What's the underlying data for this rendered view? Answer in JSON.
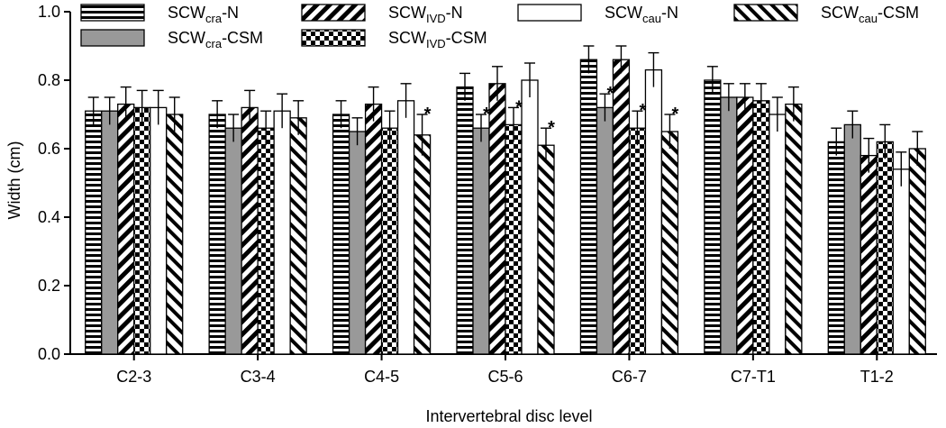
{
  "chart_data": {
    "type": "bar",
    "title": "",
    "xlabel": "Intervertebral disc level",
    "ylabel": "Width (cm)",
    "ylim": [
      0,
      1.0
    ],
    "yticks": [
      "0.0",
      "0.2",
      "0.4",
      "0.6",
      "0.8",
      "1.0"
    ],
    "grid": false,
    "legend_position": "top",
    "categories": [
      "C2-3",
      "C3-4",
      "C4-5",
      "C5-6",
      "C6-7",
      "C7-T1",
      "T1-2"
    ],
    "series": [
      {
        "name_main": "SCW",
        "name_sub": "cra",
        "name_suffix": "-N",
        "pattern": "hlines",
        "values": [
          0.71,
          0.7,
          0.7,
          0.78,
          0.86,
          0.8,
          0.62
        ],
        "errors": [
          0.04,
          0.04,
          0.04,
          0.04,
          0.04,
          0.04,
          0.04
        ]
      },
      {
        "name_main": "SCW",
        "name_sub": "cra",
        "name_suffix": "-CSM",
        "pattern": "gray",
        "values": [
          0.71,
          0.66,
          0.65,
          0.66,
          0.72,
          0.75,
          0.67
        ],
        "errors": [
          0.04,
          0.04,
          0.04,
          0.04,
          0.04,
          0.04,
          0.04
        ]
      },
      {
        "name_main": "SCW",
        "name_sub": "IVD",
        "name_suffix": "-N",
        "pattern": "backdiag",
        "values": [
          0.73,
          0.72,
          0.73,
          0.79,
          0.86,
          0.75,
          0.58
        ],
        "errors": [
          0.05,
          0.05,
          0.05,
          0.05,
          0.04,
          0.04,
          0.05
        ]
      },
      {
        "name_main": "SCW",
        "name_sub": "IVD",
        "name_suffix": "-CSM",
        "pattern": "checker",
        "values": [
          0.72,
          0.66,
          0.66,
          0.67,
          0.66,
          0.74,
          0.62
        ],
        "errors": [
          0.05,
          0.05,
          0.05,
          0.05,
          0.05,
          0.05,
          0.05
        ]
      },
      {
        "name_main": "SCW",
        "name_sub": "cau",
        "name_suffix": "-N",
        "pattern": "white",
        "values": [
          0.72,
          0.71,
          0.74,
          0.8,
          0.83,
          0.7,
          0.54
        ],
        "errors": [
          0.05,
          0.05,
          0.05,
          0.05,
          0.05,
          0.05,
          0.05
        ]
      },
      {
        "name_main": "SCW",
        "name_sub": "cau",
        "name_suffix": "-CSM",
        "pattern": "fwddiag",
        "values": [
          0.7,
          0.69,
          0.64,
          0.61,
          0.65,
          0.73,
          0.6
        ],
        "errors": [
          0.05,
          0.05,
          0.06,
          0.05,
          0.05,
          0.05,
          0.05
        ]
      }
    ],
    "annotations": [
      {
        "text": "*",
        "category": "C4-5",
        "series": 5
      },
      {
        "text": "*",
        "category": "C5-6",
        "series": 1
      },
      {
        "text": "*",
        "category": "C5-6",
        "series": 3
      },
      {
        "text": "*",
        "category": "C5-6",
        "series": 5
      },
      {
        "text": "*",
        "category": "C6-7",
        "series": 1
      },
      {
        "text": "*",
        "category": "C6-7",
        "series": 3
      },
      {
        "text": "*",
        "category": "C6-7",
        "series": 5
      }
    ]
  }
}
